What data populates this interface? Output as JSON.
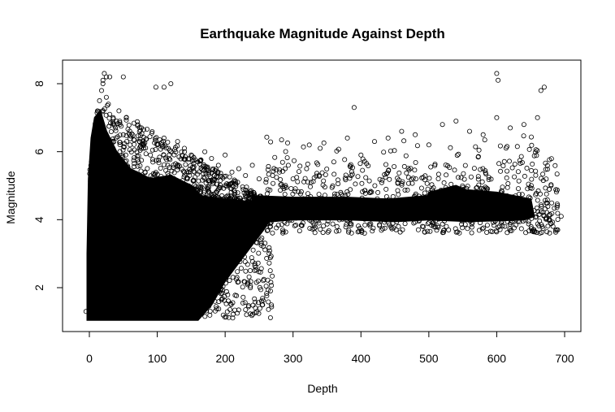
{
  "chart_data": {
    "type": "scatter",
    "title": "Earthquake Magnitude Against Depth",
    "xlabel": "Depth",
    "ylabel": "Magnitude",
    "xlim": [
      -5,
      700
    ],
    "ylim": [
      1,
      8.3
    ],
    "x_ticks": [
      0,
      100,
      200,
      300,
      400,
      500,
      600,
      700
    ],
    "y_ticks": [
      2,
      4,
      6,
      8
    ],
    "grid": false,
    "marker": "open-circle",
    "color": "#000000",
    "series": [
      {
        "x": [
          -5,
          2,
          5,
          8,
          10,
          12,
          15,
          18,
          20,
          22,
          25,
          28,
          30,
          35,
          40,
          45,
          50,
          55,
          60,
          70,
          80,
          90,
          100,
          110,
          120,
          130,
          140,
          150,
          160,
          170,
          180,
          190,
          200,
          210,
          220,
          230,
          240,
          250,
          260,
          270,
          280,
          300,
          320,
          340,
          360,
          380,
          400,
          420,
          440,
          460,
          480,
          500,
          520,
          540,
          560,
          580,
          600,
          620,
          640,
          660,
          680,
          695,
          20,
          25,
          30,
          50,
          98,
          110,
          120,
          600,
          602,
          670,
          665,
          390
        ],
        "y": [
          1.3,
          3.5,
          5.0,
          6.2,
          6.8,
          7.2,
          7.5,
          7.8,
          8.0,
          8.3,
          7.6,
          7.4,
          7.1,
          7.0,
          6.9,
          6.8,
          6.5,
          6.3,
          6.2,
          6.0,
          6.1,
          5.9,
          6.2,
          6.4,
          6.0,
          6.3,
          6.1,
          5.9,
          5.7,
          6.0,
          5.8,
          5.6,
          5.9,
          5.4,
          5.5,
          5.3,
          5.6,
          5.2,
          5.1,
          5.3,
          5.4,
          5.2,
          5.5,
          6.1,
          5.7,
          6.4,
          5.9,
          6.3,
          6.4,
          6.6,
          6.5,
          6.2,
          6.8,
          6.9,
          6.6,
          6.5,
          7.0,
          6.7,
          6.8,
          7.0,
          5.0,
          4.1,
          8.1,
          8.2,
          8.2,
          8.2,
          7.9,
          7.9,
          8.0,
          8.3,
          8.1,
          7.9,
          7.8,
          7.3
        ]
      }
    ]
  }
}
